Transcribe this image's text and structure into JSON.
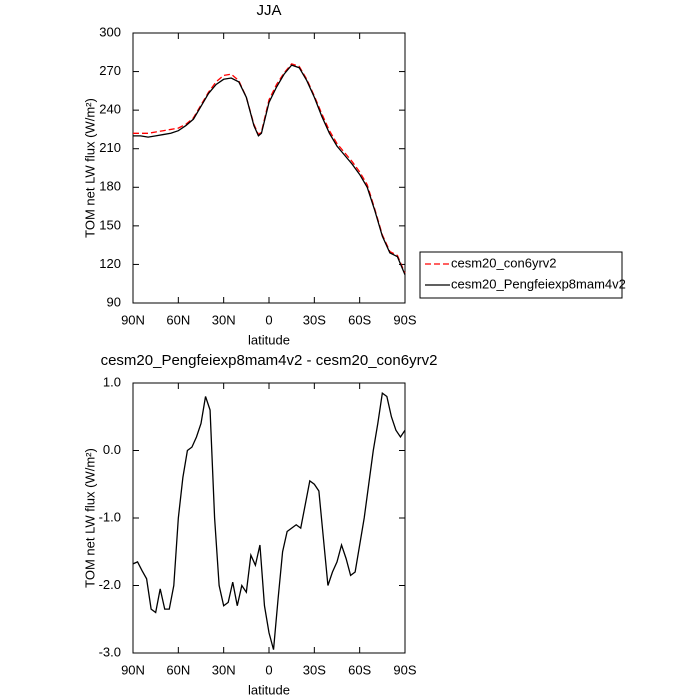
{
  "chart_data": [
    {
      "type": "line",
      "title": "JJA",
      "x_label": "latitude",
      "y_label": "TOM net LW flux (W/m²)",
      "x": [
        90,
        85,
        80,
        75,
        70,
        65,
        60,
        55,
        50,
        45,
        40,
        35,
        30,
        25,
        20,
        15,
        10,
        7,
        5,
        0,
        -5,
        -10,
        -15,
        -20,
        -25,
        -30,
        -35,
        -40,
        -45,
        -50,
        -55,
        -60,
        -65,
        -70,
        -75,
        -80,
        -85,
        -90
      ],
      "series": [
        {
          "name": "cesm20_con6yrv2",
          "color": "#ff0000",
          "style": "dashed",
          "values": [
            222,
            222,
            222,
            223,
            224,
            225,
            226,
            229,
            234,
            244,
            254,
            262,
            267,
            268,
            263,
            250,
            229,
            221,
            223,
            248,
            260,
            269,
            276,
            274,
            264,
            251,
            237,
            224,
            214,
            207,
            200,
            192,
            182,
            163,
            143,
            130,
            127,
            113
          ]
        },
        {
          "name": "cesm20_Pengfeiexp8mam4v2",
          "color": "#000000",
          "style": "solid",
          "values": [
            220,
            220,
            219,
            220,
            221,
            222,
            224,
            228,
            233,
            243,
            253,
            260,
            264,
            265,
            262,
            250,
            228,
            220,
            222,
            246,
            258,
            268,
            275,
            273,
            263,
            250,
            235,
            222,
            212,
            205,
            198,
            190,
            180,
            162,
            142,
            129,
            126,
            112
          ]
        }
      ],
      "xlim": [
        90,
        -90
      ],
      "xticks": [
        {
          "value": 90,
          "label": "90N"
        },
        {
          "value": 60,
          "label": "60N"
        },
        {
          "value": 30,
          "label": "30N"
        },
        0,
        {
          "value": -30,
          "label": "30S"
        },
        {
          "value": -60,
          "label": "60S"
        },
        {
          "value": -90,
          "label": "90S"
        }
      ],
      "ylim": [
        90,
        300
      ],
      "yticks": [
        90,
        120,
        150,
        180,
        210,
        240,
        270,
        300
      ],
      "legend": "right"
    },
    {
      "type": "line",
      "title": "cesm20_Pengfeiexp8mam4v2 - cesm20_con6yrv2",
      "x_label": "latitude",
      "y_label": "TOM net LW flux (W/m²)",
      "x": [
        90,
        87,
        84,
        81,
        78,
        75,
        72,
        69,
        66,
        63,
        60,
        57,
        54,
        51,
        48,
        45,
        42,
        39,
        36,
        33,
        30,
        27,
        24,
        21,
        18,
        15,
        12,
        9,
        6,
        3,
        0,
        -3,
        -6,
        -9,
        -12,
        -15,
        -18,
        -21,
        -24,
        -27,
        -30,
        -33,
        -36,
        -39,
        -42,
        -45,
        -48,
        -51,
        -54,
        -57,
        -60,
        -63,
        -66,
        -69,
        -72,
        -75,
        -78,
        -81,
        -84,
        -87,
        -90
      ],
      "series": [
        {
          "color": "#000000",
          "style": "solid",
          "values": [
            -1.68,
            -1.65,
            -1.78,
            -1.9,
            -2.35,
            -2.4,
            -2.05,
            -2.35,
            -2.35,
            -2.0,
            -1.0,
            -0.4,
            0.0,
            0.05,
            0.2,
            0.4,
            0.8,
            0.6,
            -1.0,
            -2.0,
            -2.3,
            -2.25,
            -1.95,
            -2.3,
            -2.0,
            -2.1,
            -1.55,
            -1.7,
            -1.4,
            -2.3,
            -2.7,
            -2.95,
            -2.2,
            -1.5,
            -1.2,
            -1.15,
            -1.1,
            -1.15,
            -0.8,
            -0.45,
            -0.5,
            -0.6,
            -1.3,
            -2.0,
            -1.8,
            -1.65,
            -1.4,
            -1.6,
            -1.85,
            -1.8,
            -1.4,
            -1.0,
            -0.5,
            0.0,
            0.4,
            0.85,
            0.8,
            0.5,
            0.3,
            0.2,
            0.3
          ]
        }
      ],
      "xlim": [
        90,
        -90
      ],
      "xticks": [
        {
          "value": 90,
          "label": "90N"
        },
        {
          "value": 60,
          "label": "60N"
        },
        {
          "value": 30,
          "label": "30N"
        },
        0,
        {
          "value": -30,
          "label": "30S"
        },
        {
          "value": -60,
          "label": "60S"
        },
        {
          "value": -90,
          "label": "90S"
        }
      ],
      "ylim": [
        -3,
        1
      ],
      "yticks": [
        {
          "value": 1,
          "label": "1.0"
        },
        {
          "value": 0,
          "label": "0.0"
        },
        {
          "value": -1,
          "label": "-1.0"
        },
        {
          "value": -2,
          "label": "-2.0"
        },
        {
          "value": -3,
          "label": "-3.0"
        }
      ]
    }
  ]
}
